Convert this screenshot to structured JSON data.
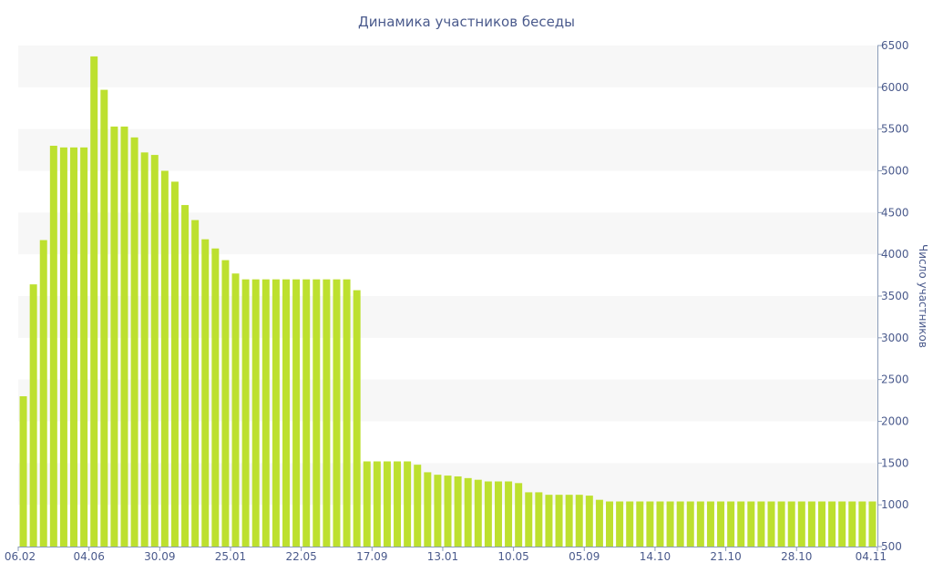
{
  "chart_data": {
    "type": "bar",
    "title": "Динамика участников беседы",
    "ylabel": "Число участников",
    "xlabel": "",
    "ylim": [
      500,
      6500
    ],
    "yticks": [
      500,
      1000,
      1500,
      2000,
      2500,
      3000,
      3500,
      4000,
      4500,
      5000,
      5500,
      6000,
      6500
    ],
    "x_tick_labels": [
      "06.02",
      "04.06",
      "30.09",
      "25.01",
      "22.05",
      "17.09",
      "13.01",
      "10.05",
      "05.09",
      "14.10",
      "21.10",
      "28.10",
      "04.11"
    ],
    "x_tick_bar_index": [
      0,
      7,
      14,
      21,
      28,
      35,
      42,
      49,
      56,
      63,
      70,
      77,
      84
    ],
    "values": [
      2300,
      3640,
      4170,
      5300,
      5280,
      5280,
      5280,
      6370,
      5970,
      5530,
      5530,
      5400,
      5220,
      5190,
      5000,
      4870,
      4590,
      4410,
      4180,
      4070,
      3930,
      3770,
      3700,
      3700,
      3700,
      3700,
      3700,
      3700,
      3700,
      3700,
      3700,
      3700,
      3700,
      3570,
      1520,
      1520,
      1520,
      1520,
      1520,
      1480,
      1390,
      1360,
      1350,
      1340,
      1320,
      1300,
      1280,
      1280,
      1280,
      1260,
      1150,
      1150,
      1120,
      1120,
      1120,
      1120,
      1110,
      1060,
      1040,
      1040,
      1040,
      1040,
      1040,
      1040,
      1040,
      1040,
      1040,
      1040,
      1040,
      1040,
      1040,
      1040,
      1040,
      1040,
      1040,
      1040,
      1040,
      1040,
      1040,
      1040,
      1040,
      1040,
      1040,
      1040,
      1040
    ],
    "bar_color": "#bde02f",
    "band_color": "#f7f7f7",
    "text_color": "#4a5a8c",
    "axis_color": "#8a9bb8",
    "grid": true,
    "y_axis_position": "right"
  }
}
